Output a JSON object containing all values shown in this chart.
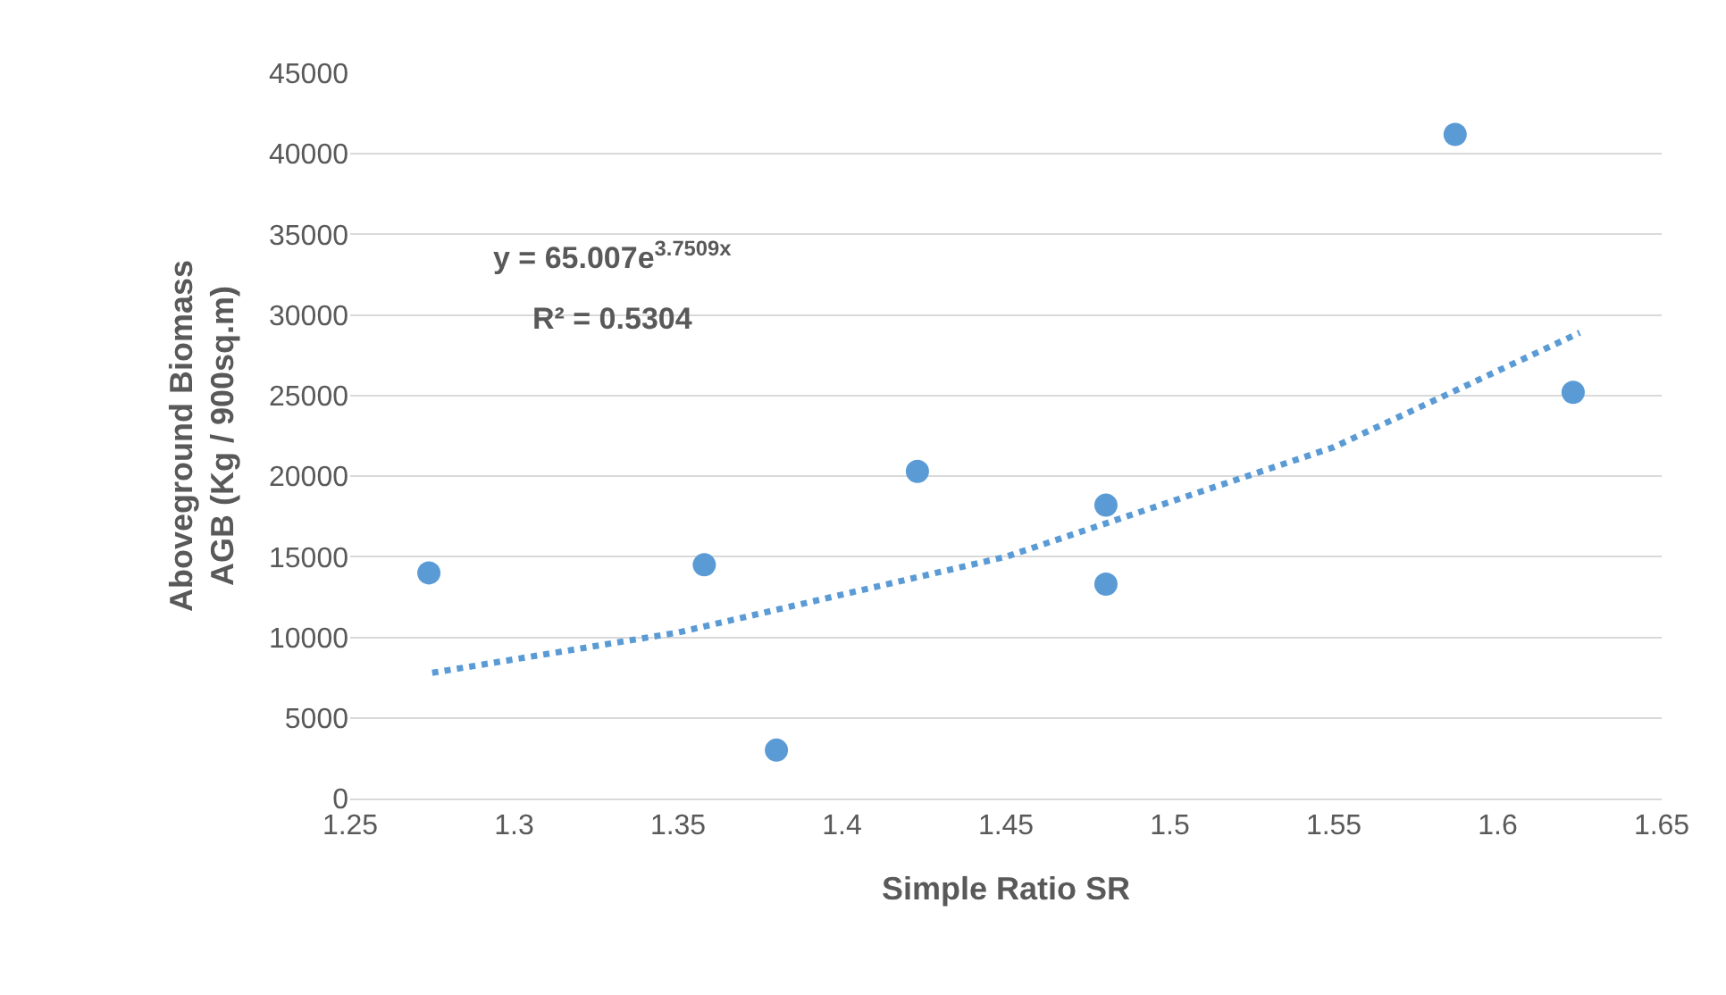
{
  "chart_data": {
    "type": "scatter",
    "xlabel": "Simple Ratio SR",
    "ylabel": "Aboveground Biomass AGB (Kg / 900sq.m)",
    "x": [
      1.274,
      1.358,
      1.38,
      1.423,
      1.4805,
      1.4805,
      1.587,
      1.623
    ],
    "series": [
      {
        "color": "#5b9bd5",
        "values": [
          14000,
          14500,
          3000,
          20300,
          18200,
          13300,
          41200,
          25200
        ]
      },
      {
        "type": "line",
        "color": "#5b9bd5",
        "line_style": "dotted",
        "marker": "none",
        "x": [
          1.275,
          1.35,
          1.45,
          1.55,
          1.625
        ],
        "values": [
          7800,
          10300,
          15000,
          21800,
          28900
        ]
      }
    ],
    "marker": "circle",
    "xlim": [
      1.25,
      1.65
    ],
    "xticks": [
      1.25,
      1.3,
      1.35,
      1.4,
      1.45,
      1.5,
      1.55,
      1.6,
      1.65
    ],
    "ylim": [
      0,
      45000
    ],
    "yticks": [
      0,
      5000,
      10000,
      15000,
      20000,
      25000,
      30000,
      35000,
      40000,
      45000
    ],
    "grid": "y",
    "annotations": [
      "y = 65.007e$^{3.7509x}$",
      "R² = 0.5304"
    ]
  }
}
